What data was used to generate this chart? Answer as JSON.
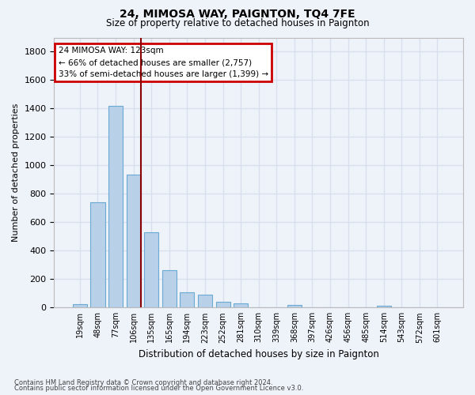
{
  "title1": "24, MIMOSA WAY, PAIGNTON, TQ4 7FE",
  "title2": "Size of property relative to detached houses in Paignton",
  "xlabel": "Distribution of detached houses by size in Paignton",
  "ylabel": "Number of detached properties",
  "footnote1": "Contains HM Land Registry data © Crown copyright and database right 2024.",
  "footnote2": "Contains public sector information licensed under the Open Government Licence v3.0.",
  "categories": [
    "19sqm",
    "48sqm",
    "77sqm",
    "106sqm",
    "135sqm",
    "165sqm",
    "194sqm",
    "223sqm",
    "252sqm",
    "281sqm",
    "310sqm",
    "339sqm",
    "368sqm",
    "397sqm",
    "426sqm",
    "456sqm",
    "485sqm",
    "514sqm",
    "543sqm",
    "572sqm",
    "601sqm"
  ],
  "values": [
    22,
    740,
    1420,
    938,
    530,
    265,
    105,
    92,
    40,
    27,
    0,
    0,
    16,
    0,
    0,
    0,
    0,
    15,
    0,
    0,
    0
  ],
  "bar_color": "#b8d0e8",
  "bar_edgecolor": "#6aaad4",
  "background_color": "#eef2f9",
  "grid_color": "#d8e0f0",
  "annotation_line1": "24 MIMOSA WAY: 123sqm",
  "annotation_line2": "← 66% of detached houses are smaller (2,757)",
  "annotation_line3": "33% of semi-detached houses are larger (1,399) →",
  "annotation_box_edgecolor": "#cc0000",
  "vline_color": "#8b0000",
  "vline_x_index": 3,
  "ylim": [
    0,
    1900
  ],
  "yticks": [
    0,
    200,
    400,
    600,
    800,
    1000,
    1200,
    1400,
    1600,
    1800
  ]
}
